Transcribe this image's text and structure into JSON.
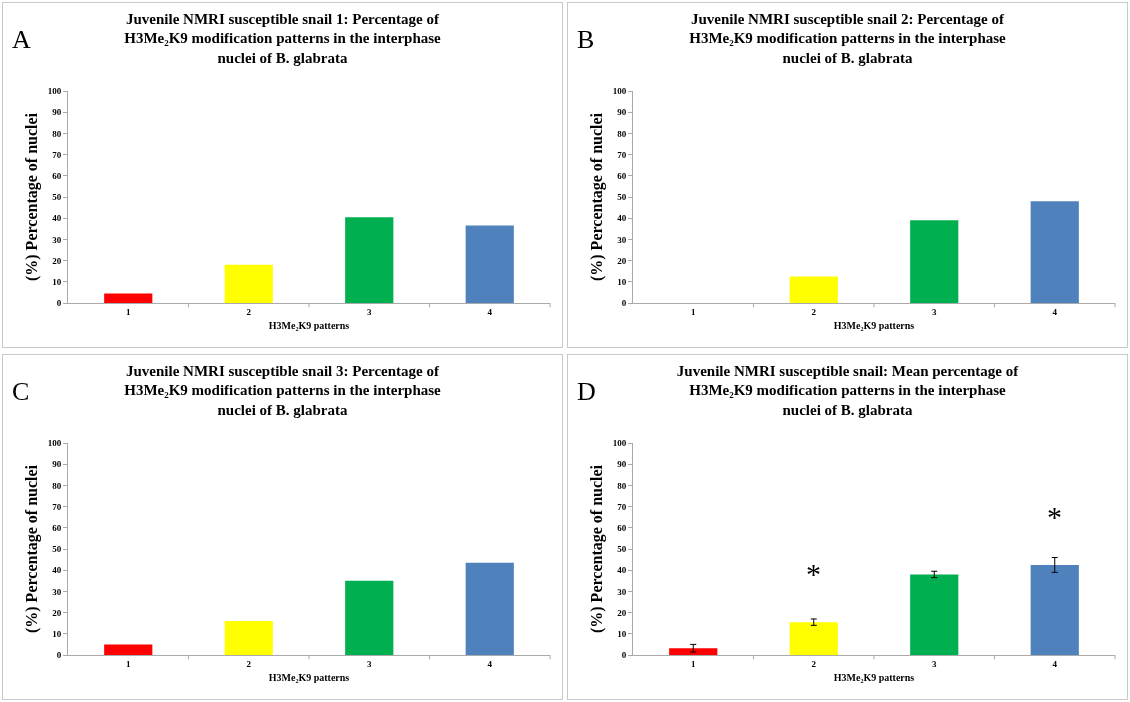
{
  "chart_data": [
    {
      "type": "bar",
      "title": "Juvenile NMRI susceptible snail 1: Percentage of H3Me₂K9 modification patterns in the interphase nuclei of B. glabrata",
      "xlabel": "H3Me₂K9 patterns",
      "ylabel": "(%) Percentage of nuclei",
      "annotations": [
        "A"
      ],
      "categories": [
        "1",
        "2",
        "3",
        "4"
      ],
      "values": [
        4.5,
        18,
        40.5,
        36.5
      ],
      "colors": [
        "#ff0000",
        "#ffff00",
        "#00b050",
        "#4f81bd"
      ],
      "ylim": [
        0,
        100
      ],
      "yticks": [
        0,
        10,
        20,
        30,
        40,
        50,
        60,
        70,
        80,
        90,
        100
      ],
      "grid": false
    },
    {
      "type": "bar",
      "title": "Juvenile NMRI susceptible snail 2: Percentage of H3Me₂K9 modification patterns in the interphase nuclei of B. glabrata",
      "xlabel": "H3Me₂K9 patterns",
      "ylabel": "(%) Percentage of nuclei",
      "annotations": [
        "B"
      ],
      "categories": [
        "1",
        "2",
        "3",
        "4"
      ],
      "values": [
        0,
        12.5,
        39,
        48
      ],
      "colors": [
        "#ff0000",
        "#ffff00",
        "#00b050",
        "#4f81bd"
      ],
      "ylim": [
        0,
        100
      ],
      "yticks": [
        0,
        10,
        20,
        30,
        40,
        50,
        60,
        70,
        80,
        90,
        100
      ],
      "grid": false
    },
    {
      "type": "bar",
      "title": "Juvenile NMRI susceptible snail 3: Percentage of H3Me₂K9 modification patterns in the interphase nuclei of B. glabrata",
      "xlabel": "H3Me₂K9 patterns",
      "ylabel": "(%) Percentage of nuclei",
      "annotations": [
        "C"
      ],
      "categories": [
        "1",
        "2",
        "3",
        "4"
      ],
      "values": [
        5,
        16,
        35,
        43.5
      ],
      "colors": [
        "#ff0000",
        "#ffff00",
        "#00b050",
        "#4f81bd"
      ],
      "ylim": [
        0,
        100
      ],
      "yticks": [
        0,
        10,
        20,
        30,
        40,
        50,
        60,
        70,
        80,
        90,
        100
      ],
      "grid": false
    },
    {
      "type": "bar",
      "title": "Juvenile NMRI susceptible snail: Mean percentage of H3Me₂K9 modification patterns in the interphase nuclei of B. glabrata",
      "xlabel": "H3Me₂K9 patterns",
      "ylabel": "(%) Percentage of nuclei",
      "annotations": [
        "D",
        {
          "text": "*",
          "x": "2",
          "y": 15.5
        },
        {
          "text": "*",
          "x": "4",
          "y": 42.5
        }
      ],
      "categories": [
        "1",
        "2",
        "3",
        "4"
      ],
      "values": [
        3.2,
        15.5,
        38,
        42.5
      ],
      "errors": [
        1.8,
        1.5,
        1.5,
        3.5
      ],
      "colors": [
        "#ff0000",
        "#ffff00",
        "#00b050",
        "#4f81bd"
      ],
      "ylim": [
        0,
        100
      ],
      "yticks": [
        0,
        10,
        20,
        30,
        40,
        50,
        60,
        70,
        80,
        90,
        100
      ],
      "grid": false
    }
  ]
}
